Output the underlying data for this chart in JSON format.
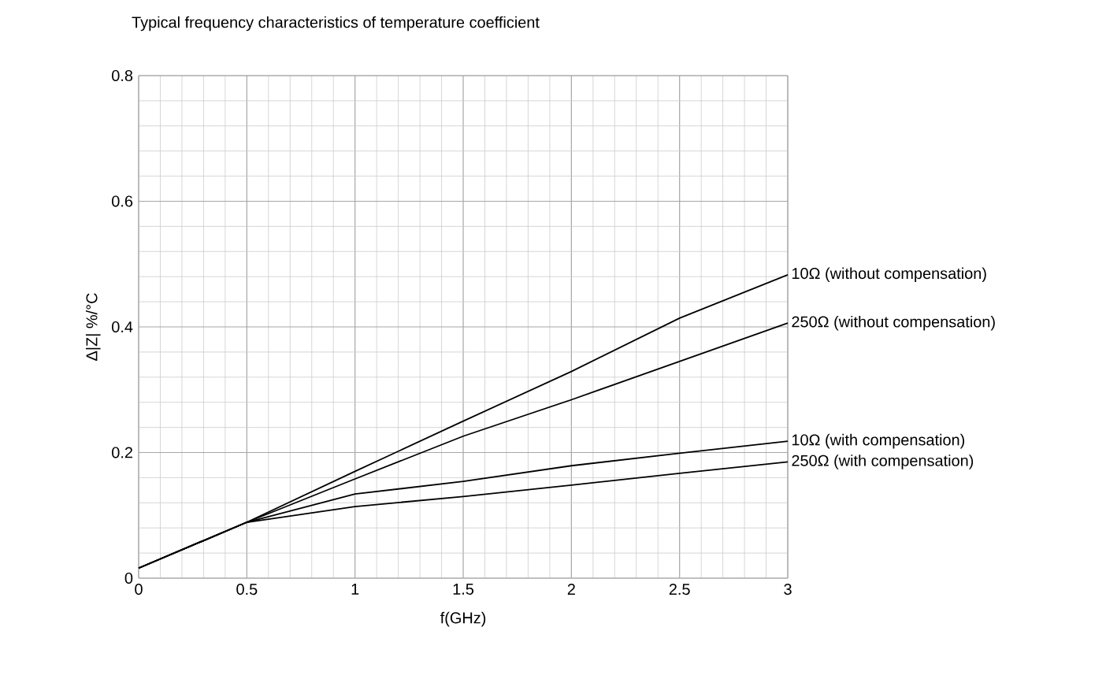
{
  "chart_data": {
    "type": "line",
    "title": "Typical frequency characteristics of temperature coefficient",
    "xlabel": "f(GHz)",
    "ylabel": "Δ|Z| %/°C",
    "x": [
      0,
      0.5,
      1,
      1.5,
      2,
      2.5,
      3
    ],
    "series": [
      {
        "name": "10Ω (without compensation)",
        "color": "#000000",
        "values": [
          0.016,
          0.089,
          0.17,
          0.25,
          0.329,
          0.414,
          0.483
        ]
      },
      {
        "name": "250Ω (without compensation)",
        "color": "#000000",
        "values": [
          0.016,
          0.089,
          0.158,
          0.226,
          0.284,
          0.345,
          0.406
        ]
      },
      {
        "name": "10Ω (with compensation)",
        "color": "#000000",
        "values": [
          0.016,
          0.089,
          0.134,
          0.154,
          0.179,
          0.199,
          0.218
        ]
      },
      {
        "name": "250Ω (with compensation)",
        "color": "#000000",
        "values": [
          0.016,
          0.089,
          0.114,
          0.13,
          0.148,
          0.167,
          0.185
        ]
      }
    ],
    "xlim": [
      0,
      3
    ],
    "ylim": [
      0,
      0.8
    ],
    "xticks": [
      0,
      0.5,
      1,
      1.5,
      2,
      2.5,
      3
    ],
    "yticks": [
      0,
      0.2,
      0.4,
      0.6,
      0.8
    ],
    "grid": true,
    "legend": false,
    "marker": "none",
    "line_style": "solid"
  }
}
